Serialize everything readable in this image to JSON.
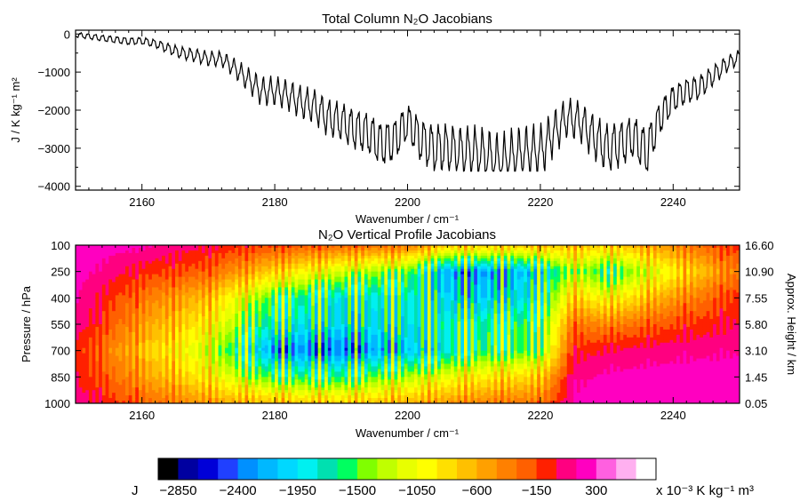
{
  "chart_data": [
    {
      "type": "line",
      "title": "Total Column N₂O Jacobians",
      "xlabel": "Wavenumber / cm⁻¹",
      "ylabel": "J / K kg⁻¹ m²",
      "xlim": [
        2150,
        2250
      ],
      "ylim": [
        -4100,
        100
      ],
      "xticks": [
        "2160",
        "2180",
        "2200",
        "2220",
        "2240"
      ],
      "yticks": [
        "0",
        "−1000",
        "−2000",
        "−3000",
        "−4000"
      ],
      "series": [
        {
          "x": [
            2150,
            2152,
            2154,
            2156,
            2158,
            2160,
            2162,
            2164,
            2166,
            2168,
            2170,
            2172,
            2174,
            2176,
            2178,
            2180,
            2182,
            2184,
            2186,
            2188,
            2190,
            2192,
            2194,
            2196,
            2198,
            2200,
            2202,
            2204,
            2206,
            2208,
            2210,
            2212,
            2214,
            2216,
            2218,
            2220,
            2222,
            2224,
            2226,
            2228,
            2230,
            2232,
            2234,
            2236,
            2238,
            2240,
            2242,
            2244,
            2246,
            2248,
            2250
          ],
          "values": [
            -20,
            -60,
            -110,
            -150,
            -190,
            -180,
            -250,
            -380,
            -500,
            -560,
            -650,
            -650,
            -900,
            -1200,
            -1500,
            -1500,
            -1600,
            -1800,
            -1900,
            -2200,
            -2300,
            -2500,
            -2600,
            -2900,
            -2800,
            -2300,
            -2800,
            -3000,
            -3000,
            -3100,
            -3100,
            -3200,
            -3400,
            -3200,
            -3100,
            -3100,
            -2600,
            -2200,
            -2300,
            -2700,
            -3000,
            -2900,
            -2700,
            -3100,
            -2200,
            -1700,
            -1500,
            -1400,
            -1100,
            -800,
            -600
          ]
        }
      ]
    },
    {
      "type": "heatmap",
      "title": "N₂O Vertical Profile Jacobians",
      "xlabel": "Wavenumber / cm⁻¹",
      "ylabel": "Pressure / hPa",
      "ylabel_right": "Approx. Height / km",
      "xlim": [
        2150,
        2250
      ],
      "xticks": [
        "2160",
        "2180",
        "2200",
        "2220",
        "2240"
      ],
      "yticks_left": [
        "100",
        "250",
        "400",
        "550",
        "700",
        "850",
        "1000"
      ],
      "yticks_right": [
        "16.60",
        "10.90",
        "7.55",
        "5.80",
        "3.10",
        "1.45",
        "0.05"
      ],
      "pressure_levels_hPa": [
        100,
        250,
        400,
        550,
        700,
        850,
        1000
      ],
      "profiles": [
        {
          "x": 2150,
          "values": [
            200,
            150,
            80,
            20,
            -200,
            -100,
            0
          ]
        },
        {
          "x": 2160,
          "values": [
            100,
            -200,
            -500,
            -700,
            -900,
            -700,
            -400
          ]
        },
        {
          "x": 2170,
          "values": [
            -100,
            -400,
            -900,
            -1200,
            -1500,
            -1200,
            -700
          ]
        },
        {
          "x": 2180,
          "values": [
            -300,
            -1000,
            -1900,
            -2200,
            -2700,
            -1900,
            -900
          ]
        },
        {
          "x": 2190,
          "values": [
            -400,
            -1500,
            -2300,
            -2400,
            -2800,
            -2000,
            -1000
          ]
        },
        {
          "x": 2200,
          "values": [
            -500,
            -1800,
            -2200,
            -2300,
            -2500,
            -1600,
            -800
          ]
        },
        {
          "x": 2205,
          "values": [
            -900,
            -2600,
            -2400,
            -2200,
            -2300,
            -1400,
            -700
          ]
        },
        {
          "x": 2210,
          "values": [
            -1000,
            -2700,
            -2500,
            -2100,
            -2000,
            -1200,
            -600
          ]
        },
        {
          "x": 2215,
          "values": [
            -1000,
            -2600,
            -2400,
            -2000,
            -1900,
            -1100,
            -500
          ]
        },
        {
          "x": 2220,
          "values": [
            -900,
            -2400,
            -2200,
            -1900,
            -1800,
            -1000,
            -500
          ]
        },
        {
          "x": 2225,
          "values": [
            -900,
            -1600,
            -1000,
            -500,
            -200,
            0,
            100
          ]
        },
        {
          "x": 2230,
          "values": [
            -1000,
            -2000,
            -1300,
            -600,
            -100,
            100,
            200
          ]
        },
        {
          "x": 2240,
          "values": [
            -600,
            -1200,
            -700,
            -300,
            0,
            150,
            200
          ]
        },
        {
          "x": 2250,
          "values": [
            -200,
            -500,
            -200,
            -100,
            50,
            150,
            200
          ]
        }
      ]
    },
    {
      "type": "colorbar",
      "label_left": "J",
      "tick_labels": [
        "−2850",
        "−2400",
        "−1950",
        "−1500",
        "−1050",
        "−600",
        "−150",
        "300"
      ],
      "unit": "x 10⁻³ K kg⁻¹ m³",
      "colors": [
        "#000000",
        "#0000a0",
        "#0000d8",
        "#2040ff",
        "#0090ff",
        "#00b8ff",
        "#00d8ff",
        "#00f0f0",
        "#00e0b0",
        "#00ff60",
        "#80ff00",
        "#c0ff00",
        "#e8ff00",
        "#ffff00",
        "#ffe000",
        "#ffc000",
        "#ffa000",
        "#ff8000",
        "#ff6000",
        "#ff2000",
        "#ff0080",
        "#ff00c0",
        "#ff60e0",
        "#ffb0f0",
        "#ffffff"
      ]
    }
  ]
}
